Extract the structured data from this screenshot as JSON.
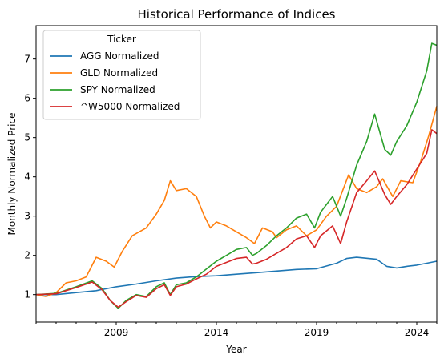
{
  "chart_data": {
    "type": "line",
    "title": "Historical Performance of Indices",
    "xlabel": "Year",
    "ylabel": "Monthly Normalized Price",
    "xlim": [
      2005.0,
      2025.0
    ],
    "ylim": [
      0.3,
      7.85
    ],
    "x_ticks": [
      2009,
      2014,
      2019,
      2024
    ],
    "y_ticks": [
      1,
      2,
      3,
      4,
      5,
      6,
      7
    ],
    "grid": false,
    "legend": {
      "title": "Ticker",
      "position": "top-left"
    },
    "series": [
      {
        "name": "AGG Normalized",
        "color": "#1f77b4",
        "points": [
          [
            2005.0,
            1.0
          ],
          [
            2006.0,
            1.0
          ],
          [
            2007.0,
            1.05
          ],
          [
            2008.0,
            1.1
          ],
          [
            2009.0,
            1.2
          ],
          [
            2010.0,
            1.27
          ],
          [
            2011.0,
            1.35
          ],
          [
            2012.0,
            1.42
          ],
          [
            2013.0,
            1.46
          ],
          [
            2014.0,
            1.48
          ],
          [
            2015.0,
            1.52
          ],
          [
            2016.0,
            1.56
          ],
          [
            2017.0,
            1.6
          ],
          [
            2018.0,
            1.64
          ],
          [
            2019.0,
            1.66
          ],
          [
            2020.0,
            1.8
          ],
          [
            2020.5,
            1.92
          ],
          [
            2021.0,
            1.95
          ],
          [
            2022.0,
            1.9
          ],
          [
            2022.5,
            1.72
          ],
          [
            2023.0,
            1.68
          ],
          [
            2023.5,
            1.72
          ],
          [
            2024.0,
            1.75
          ],
          [
            2024.5,
            1.8
          ],
          [
            2025.0,
            1.85
          ]
        ]
      },
      {
        "name": "GLD Normalized",
        "color": "#ff7f0e",
        "points": [
          [
            2005.0,
            1.0
          ],
          [
            2005.5,
            0.95
          ],
          [
            2006.0,
            1.05
          ],
          [
            2006.5,
            1.3
          ],
          [
            2007.0,
            1.35
          ],
          [
            2007.5,
            1.45
          ],
          [
            2008.0,
            1.95
          ],
          [
            2008.5,
            1.85
          ],
          [
            2008.9,
            1.7
          ],
          [
            2009.3,
            2.1
          ],
          [
            2009.8,
            2.5
          ],
          [
            2010.5,
            2.7
          ],
          [
            2011.0,
            3.05
          ],
          [
            2011.4,
            3.4
          ],
          [
            2011.7,
            3.9
          ],
          [
            2012.0,
            3.65
          ],
          [
            2012.5,
            3.7
          ],
          [
            2013.0,
            3.5
          ],
          [
            2013.4,
            3.0
          ],
          [
            2013.7,
            2.7
          ],
          [
            2014.0,
            2.85
          ],
          [
            2014.5,
            2.75
          ],
          [
            2015.0,
            2.6
          ],
          [
            2015.5,
            2.45
          ],
          [
            2015.9,
            2.3
          ],
          [
            2016.3,
            2.7
          ],
          [
            2016.8,
            2.6
          ],
          [
            2017.0,
            2.45
          ],
          [
            2017.5,
            2.65
          ],
          [
            2018.0,
            2.75
          ],
          [
            2018.5,
            2.5
          ],
          [
            2019.0,
            2.65
          ],
          [
            2019.5,
            3.0
          ],
          [
            2020.0,
            3.25
          ],
          [
            2020.6,
            4.05
          ],
          [
            2021.0,
            3.7
          ],
          [
            2021.5,
            3.6
          ],
          [
            2022.0,
            3.75
          ],
          [
            2022.3,
            3.95
          ],
          [
            2022.8,
            3.5
          ],
          [
            2023.2,
            3.9
          ],
          [
            2023.8,
            3.85
          ],
          [
            2024.2,
            4.4
          ],
          [
            2024.6,
            5.05
          ],
          [
            2025.0,
            5.8
          ]
        ]
      },
      {
        "name": "SPY Normalized",
        "color": "#2ca02c",
        "points": [
          [
            2005.0,
            1.0
          ],
          [
            2006.0,
            1.03
          ],
          [
            2007.0,
            1.2
          ],
          [
            2007.8,
            1.35
          ],
          [
            2008.3,
            1.15
          ],
          [
            2008.7,
            0.85
          ],
          [
            2009.1,
            0.65
          ],
          [
            2009.5,
            0.85
          ],
          [
            2010.0,
            1.0
          ],
          [
            2010.5,
            0.95
          ],
          [
            2011.0,
            1.2
          ],
          [
            2011.4,
            1.3
          ],
          [
            2011.7,
            1.0
          ],
          [
            2012.0,
            1.25
          ],
          [
            2012.5,
            1.3
          ],
          [
            2013.0,
            1.45
          ],
          [
            2013.5,
            1.65
          ],
          [
            2014.0,
            1.85
          ],
          [
            2014.5,
            2.0
          ],
          [
            2015.0,
            2.15
          ],
          [
            2015.5,
            2.2
          ],
          [
            2015.8,
            2.0
          ],
          [
            2016.0,
            2.05
          ],
          [
            2016.5,
            2.25
          ],
          [
            2017.0,
            2.5
          ],
          [
            2017.5,
            2.7
          ],
          [
            2018.0,
            2.95
          ],
          [
            2018.5,
            3.05
          ],
          [
            2018.9,
            2.7
          ],
          [
            2019.2,
            3.1
          ],
          [
            2019.8,
            3.5
          ],
          [
            2020.2,
            3.0
          ],
          [
            2020.5,
            3.45
          ],
          [
            2021.0,
            4.3
          ],
          [
            2021.5,
            4.9
          ],
          [
            2021.9,
            5.6
          ],
          [
            2022.4,
            4.7
          ],
          [
            2022.7,
            4.55
          ],
          [
            2023.0,
            4.9
          ],
          [
            2023.5,
            5.3
          ],
          [
            2024.0,
            5.9
          ],
          [
            2024.5,
            6.7
          ],
          [
            2024.75,
            7.4
          ],
          [
            2025.0,
            7.35
          ]
        ]
      },
      {
        "name": "^W5000 Normalized",
        "color": "#d62728",
        "points": [
          [
            2005.0,
            1.0
          ],
          [
            2006.0,
            1.02
          ],
          [
            2007.0,
            1.18
          ],
          [
            2007.8,
            1.32
          ],
          [
            2008.3,
            1.12
          ],
          [
            2008.7,
            0.85
          ],
          [
            2009.1,
            0.68
          ],
          [
            2009.5,
            0.82
          ],
          [
            2010.0,
            0.98
          ],
          [
            2010.5,
            0.93
          ],
          [
            2011.0,
            1.15
          ],
          [
            2011.4,
            1.25
          ],
          [
            2011.7,
            0.98
          ],
          [
            2012.0,
            1.2
          ],
          [
            2012.5,
            1.27
          ],
          [
            2013.0,
            1.4
          ],
          [
            2013.5,
            1.52
          ],
          [
            2014.0,
            1.72
          ],
          [
            2014.5,
            1.82
          ],
          [
            2015.0,
            1.92
          ],
          [
            2015.5,
            1.95
          ],
          [
            2015.8,
            1.78
          ],
          [
            2016.0,
            1.8
          ],
          [
            2016.5,
            1.9
          ],
          [
            2017.0,
            2.05
          ],
          [
            2017.5,
            2.2
          ],
          [
            2018.0,
            2.42
          ],
          [
            2018.5,
            2.5
          ],
          [
            2018.9,
            2.2
          ],
          [
            2019.2,
            2.5
          ],
          [
            2019.8,
            2.75
          ],
          [
            2020.2,
            2.3
          ],
          [
            2020.5,
            2.85
          ],
          [
            2021.0,
            3.6
          ],
          [
            2021.5,
            3.9
          ],
          [
            2021.9,
            4.15
          ],
          [
            2022.4,
            3.55
          ],
          [
            2022.7,
            3.3
          ],
          [
            2023.0,
            3.5
          ],
          [
            2023.5,
            3.8
          ],
          [
            2024.0,
            4.2
          ],
          [
            2024.5,
            4.6
          ],
          [
            2024.75,
            5.2
          ],
          [
            2025.0,
            5.1
          ]
        ]
      }
    ]
  }
}
